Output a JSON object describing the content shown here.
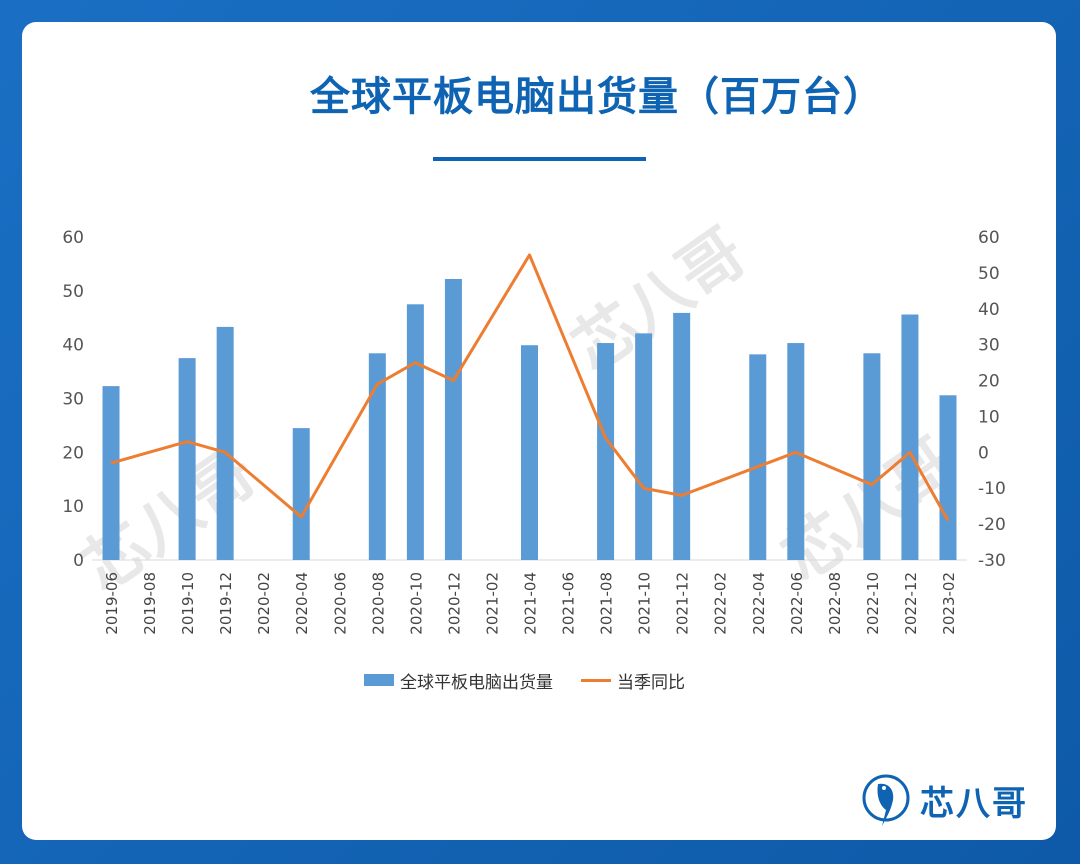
{
  "title": "全球平板电脑出货量（百万台）",
  "brand": {
    "name": "芯八哥",
    "logo_icon": "bird-logo-icon"
  },
  "watermark_text": "芯八哥",
  "colors": {
    "accent": "#0f63b3",
    "bar": "#5b9bd5",
    "line": "#ed7d31"
  },
  "chart_data": {
    "type": "bar",
    "categories": [
      "2019-06",
      "2019-08",
      "2019-10",
      "2019-12",
      "2020-02",
      "2020-04",
      "2020-06",
      "2020-08",
      "2020-10",
      "2020-12",
      "2021-02",
      "2021-04",
      "2021-06",
      "2021-08",
      "2021-10",
      "2021-12",
      "2022-02",
      "2022-04",
      "2022-06",
      "2022-08",
      "2022-10",
      "2022-12",
      "2023-02"
    ],
    "series": [
      {
        "name": "全球平板电脑出货量",
        "type": "bar",
        "axis": "left",
        "points": [
          {
            "x": "2019-06",
            "y": 32.3
          },
          {
            "x": "2019-10",
            "y": 37.5
          },
          {
            "x": "2019-12",
            "y": 43.3
          },
          {
            "x": "2020-04",
            "y": 24.5
          },
          {
            "x": "2020-08",
            "y": 38.4
          },
          {
            "x": "2020-10",
            "y": 47.5
          },
          {
            "x": "2020-12",
            "y": 52.2
          },
          {
            "x": "2021-04",
            "y": 39.9
          },
          {
            "x": "2021-08",
            "y": 40.3
          },
          {
            "x": "2021-10",
            "y": 42.1
          },
          {
            "x": "2021-12",
            "y": 45.9
          },
          {
            "x": "2022-04",
            "y": 38.2
          },
          {
            "x": "2022-06",
            "y": 40.3
          },
          {
            "x": "2022-10",
            "y": 38.4
          },
          {
            "x": "2022-12",
            "y": 45.6
          },
          {
            "x": "2023-02",
            "y": 30.6
          }
        ]
      },
      {
        "name": "当季同比",
        "type": "line",
        "axis": "right",
        "points": [
          {
            "x": "2019-06",
            "y": -3
          },
          {
            "x": "2019-10",
            "y": 3
          },
          {
            "x": "2019-12",
            "y": 0
          },
          {
            "x": "2020-04",
            "y": -18
          },
          {
            "x": "2020-08",
            "y": 19
          },
          {
            "x": "2020-10",
            "y": 25
          },
          {
            "x": "2020-12",
            "y": 20
          },
          {
            "x": "2021-04",
            "y": 55
          },
          {
            "x": "2021-08",
            "y": 4
          },
          {
            "x": "2021-10",
            "y": -10
          },
          {
            "x": "2021-12",
            "y": -12
          },
          {
            "x": "2022-04",
            "y": -4
          },
          {
            "x": "2022-06",
            "y": 0
          },
          {
            "x": "2022-10",
            "y": -9
          },
          {
            "x": "2022-12",
            "y": 0
          },
          {
            "x": "2023-02",
            "y": -19
          }
        ]
      }
    ],
    "y_left": {
      "ticks": [
        "0",
        "10",
        "20",
        "30",
        "40",
        "50",
        "60"
      ],
      "range": [
        0,
        60
      ]
    },
    "y_right": {
      "ticks": [
        "-30",
        "-20",
        "-10",
        "0",
        "10",
        "20",
        "30",
        "40",
        "50",
        "60"
      ],
      "range": [
        -30,
        60
      ]
    },
    "legend": [
      "全球平板电脑出货量",
      "当季同比"
    ],
    "legend_position": "bottom"
  }
}
